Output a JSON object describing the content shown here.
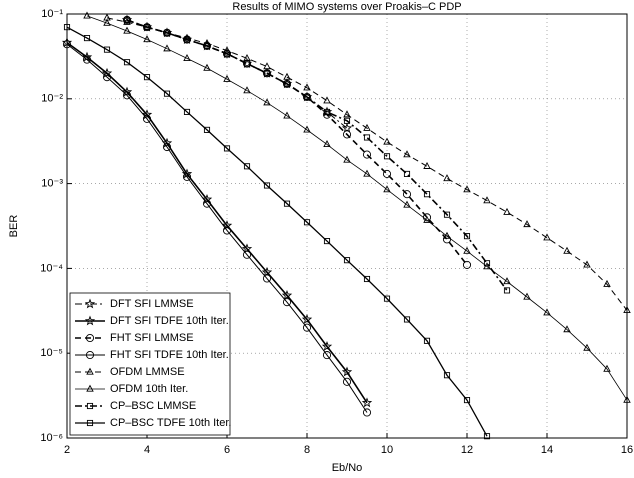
{
  "chart_data": {
    "type": "line",
    "title": "Results of MIMO systems over Proakis–C PDP",
    "xlabel": "Eb/No",
    "ylabel": "BER",
    "x": [
      2,
      2.5,
      3,
      3.5,
      4,
      4.5,
      5,
      5.5,
      6,
      6.5,
      7,
      7.5,
      8,
      8.5,
      9,
      9.5,
      10,
      10.5,
      11,
      11.5,
      12,
      12.5,
      13,
      13.5,
      14,
      14.5,
      15,
      15.5,
      16
    ],
    "xlim": [
      2,
      16
    ],
    "xticks": [
      2,
      4,
      6,
      8,
      10,
      12,
      14,
      16
    ],
    "ylim": [
      1e-06,
      0.1
    ],
    "yscale": "log",
    "yticks": [
      {
        "value": 1e-06,
        "label": "10⁻⁶"
      },
      {
        "value": 1e-05,
        "label": "10⁻⁵"
      },
      {
        "value": 0.0001,
        "label": "10⁻⁴"
      },
      {
        "value": 0.001,
        "label": "10⁻³"
      },
      {
        "value": 0.01,
        "label": "10⁻²"
      },
      {
        "value": 0.1,
        "label": "10⁻¹"
      }
    ],
    "grid": true,
    "legend": "lower left",
    "series": [
      {
        "name": "DFT SFI LMMSE",
        "color": "#000000",
        "marker": "star",
        "dash": "dashdot",
        "width": 1,
        "values": [
          null,
          null,
          null,
          0.085,
          0.07,
          0.06,
          0.05,
          0.042,
          0.034,
          0.026,
          0.02,
          0.015,
          0.0105,
          0.007,
          0.0045,
          null,
          null,
          null,
          null,
          null,
          null,
          null,
          null,
          null,
          null,
          null,
          null,
          null,
          null
        ]
      },
      {
        "name": "DFT SFI TDFE  10th Iter.",
        "color": "#000000",
        "marker": "star",
        "dash": "solid",
        "width": 1.6,
        "values": [
          0.046,
          0.031,
          0.02,
          0.012,
          0.0065,
          0.003,
          0.0013,
          0.00065,
          0.00032,
          0.00017,
          9e-05,
          4.8e-05,
          2.5e-05,
          1.2e-05,
          6e-06,
          2.6e-06,
          null,
          null,
          null,
          null,
          null,
          null,
          null,
          null,
          null,
          null,
          null,
          null,
          null
        ]
      },
      {
        "name": "FHT SFI LMMSE",
        "color": "#000000",
        "marker": "circle",
        "dash": "dashed",
        "width": 1.6,
        "values": [
          null,
          null,
          null,
          0.085,
          0.07,
          0.06,
          0.05,
          0.042,
          0.034,
          0.026,
          0.02,
          0.015,
          0.0105,
          0.0065,
          0.0038,
          0.0022,
          0.0013,
          0.00075,
          0.0004,
          0.00022,
          0.00011,
          null,
          null,
          null,
          null,
          null,
          null,
          null,
          null
        ]
      },
      {
        "name": "FHT SFI TDFE  10th Iter.",
        "color": "#000000",
        "marker": "circle",
        "dash": "solid",
        "width": 1,
        "values": [
          0.044,
          0.029,
          0.018,
          0.011,
          0.0058,
          0.0027,
          0.0012,
          0.00058,
          0.00028,
          0.000145,
          7.6e-05,
          4e-05,
          2e-05,
          9.5e-06,
          4.6e-06,
          2e-06,
          null,
          null,
          null,
          null,
          null,
          null,
          null,
          null,
          null,
          null,
          null,
          null,
          null
        ]
      },
      {
        "name": "OFDM LMMSE",
        "color": "#000000",
        "marker": "triangle",
        "dash": "dashed",
        "width": 1,
        "values": [
          null,
          null,
          0.09,
          0.08,
          0.07,
          0.06,
          0.052,
          0.045,
          0.037,
          0.03,
          0.024,
          0.018,
          0.0135,
          0.0095,
          0.0065,
          0.0045,
          0.0031,
          0.0022,
          0.0016,
          0.00115,
          0.00085,
          0.00063,
          0.00046,
          0.00033,
          0.00023,
          0.00016,
          0.00011,
          6.5e-05,
          3.2e-05
        ]
      },
      {
        "name": "OFDM 10th Iter.",
        "color": "#000000",
        "marker": "triangle",
        "dash": "solid",
        "width": 0.8,
        "values": [
          null,
          0.095,
          0.078,
          0.063,
          0.05,
          0.039,
          0.03,
          0.023,
          0.017,
          0.0125,
          0.009,
          0.0063,
          0.0043,
          0.0029,
          0.0019,
          0.0013,
          0.00085,
          0.00056,
          0.00037,
          0.00024,
          0.00016,
          0.000105,
          7e-05,
          4.6e-05,
          3e-05,
          1.9e-05,
          1.15e-05,
          6.5e-06,
          2.8e-06
        ]
      },
      {
        "name": "CP–BSC LMMSE",
        "color": "#000000",
        "marker": "square",
        "dash": "dashdot",
        "width": 1.6,
        "values": [
          null,
          null,
          null,
          0.085,
          0.07,
          0.06,
          0.05,
          0.042,
          0.034,
          0.026,
          0.02,
          0.015,
          0.0105,
          0.007,
          0.0055,
          0.0035,
          0.0021,
          0.0013,
          0.00075,
          0.00043,
          0.00024,
          0.000115,
          5.5e-05,
          null,
          null,
          null,
          null,
          null,
          null
        ]
      },
      {
        "name": "CP–BSC TDFE  10th Iter.",
        "color": "#000000",
        "marker": "square",
        "dash": "solid",
        "width": 1.3,
        "values": [
          0.07,
          0.052,
          0.038,
          0.027,
          0.018,
          0.0115,
          0.007,
          0.0043,
          0.0026,
          0.0016,
          0.00095,
          0.00058,
          0.00035,
          0.00021,
          0.000125,
          7.5e-05,
          4.4e-05,
          2.5e-05,
          1.4e-05,
          5.5e-06,
          2.8e-06,
          1.05e-06,
          null,
          null,
          null,
          null,
          null,
          null,
          null
        ]
      }
    ]
  }
}
